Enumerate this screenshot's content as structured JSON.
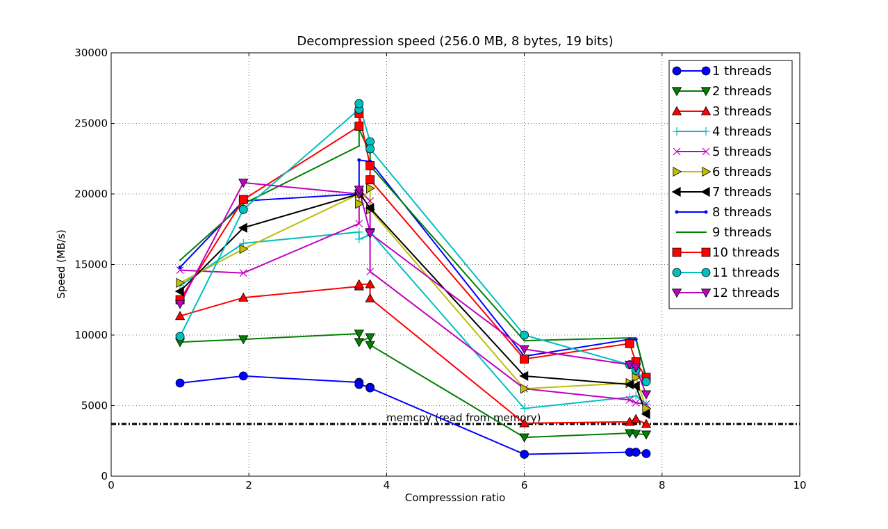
{
  "chart_data": {
    "type": "line",
    "title": "Decompression speed (256.0 MB, 8 bytes, 19 bits)",
    "xlabel": "Compresssion ratio",
    "ylabel": "Speed (MB/s)",
    "xlim": [
      0,
      10
    ],
    "ylim": [
      0,
      30000
    ],
    "xticks": [
      0,
      2,
      4,
      6,
      8,
      10
    ],
    "yticks": [
      0,
      5000,
      10000,
      15000,
      20000,
      25000,
      30000
    ],
    "xtick_labels": [
      "0",
      "2",
      "4",
      "6",
      "8",
      "10"
    ],
    "ytick_labels": [
      "0",
      "5000",
      "10000",
      "15000",
      "20000",
      "25000",
      "30000"
    ],
    "grid": true,
    "legend_position": "top-right",
    "reference_line": {
      "label": "memcpy (read from memory)",
      "y": 3700,
      "color": "#000000"
    },
    "x": [
      1.0,
      1.92,
      3.6,
      3.6,
      3.76,
      3.76,
      6.0,
      7.53,
      7.62,
      7.77
    ],
    "series": [
      {
        "name": "1 threads",
        "color": "#0000ff",
        "marker": "circle",
        "values": [
          6600,
          7100,
          6650,
          6500,
          6300,
          6250,
          1550,
          1700,
          1700,
          1600
        ]
      },
      {
        "name": "2 threads",
        "color": "#008000",
        "marker": "triangle-down",
        "values": [
          9500,
          9700,
          10100,
          9500,
          9850,
          9300,
          2750,
          3050,
          3000,
          2950
        ]
      },
      {
        "name": "3 threads",
        "color": "#ff0000",
        "marker": "triangle-up",
        "values": [
          11350,
          12650,
          13450,
          13600,
          13600,
          12600,
          3750,
          3850,
          4050,
          3700
        ]
      },
      {
        "name": "4 threads",
        "color": "#00bfbf",
        "marker": "plus",
        "values": [
          13500,
          16500,
          17300,
          16800,
          17100,
          17300,
          4800,
          5600,
          5700,
          5100
        ]
      },
      {
        "name": "5 threads",
        "color": "#bf00bf",
        "marker": "x",
        "values": [
          14600,
          14400,
          17900,
          20300,
          19500,
          14500,
          6200,
          5400,
          5200,
          5100
        ]
      },
      {
        "name": "6 threads",
        "color": "#bfbf00",
        "marker": "triangle-right",
        "values": [
          13700,
          16100,
          20000,
          19300,
          20400,
          18900,
          6200,
          6600,
          7000,
          4800
        ]
      },
      {
        "name": "7 threads",
        "color": "#000000",
        "marker": "triangle-left",
        "values": [
          13100,
          17600,
          20000,
          20100,
          19000,
          19000,
          7100,
          6500,
          6400,
          4400
        ]
      },
      {
        "name": "8 threads",
        "color": "#0000ff",
        "marker": "dot",
        "values": [
          14800,
          19500,
          20000,
          22400,
          22300,
          22300,
          8500,
          9700,
          9700,
          7000
        ]
      },
      {
        "name": "9 threads",
        "color": "#008000",
        "marker": "pixel",
        "values": [
          15300,
          19300,
          23400,
          24600,
          22900,
          22000,
          9600,
          9800,
          9800,
          6900
        ]
      },
      {
        "name": "10 threads",
        "color": "#ff0000",
        "marker": "square",
        "values": [
          12500,
          19600,
          24800,
          25700,
          22000,
          21000,
          8300,
          9400,
          8100,
          7000
        ]
      },
      {
        "name": "11 threads",
        "color": "#00bfbf",
        "marker": "circle",
        "values": [
          9900,
          18900,
          26000,
          26400,
          23700,
          23200,
          10000,
          7900,
          7500,
          6700
        ]
      },
      {
        "name": "12 threads",
        "color": "#bf00bf",
        "marker": "triangle-down",
        "values": [
          12200,
          20800,
          20000,
          20300,
          17300,
          17200,
          9000,
          7900,
          7700,
          5800
        ]
      }
    ]
  }
}
